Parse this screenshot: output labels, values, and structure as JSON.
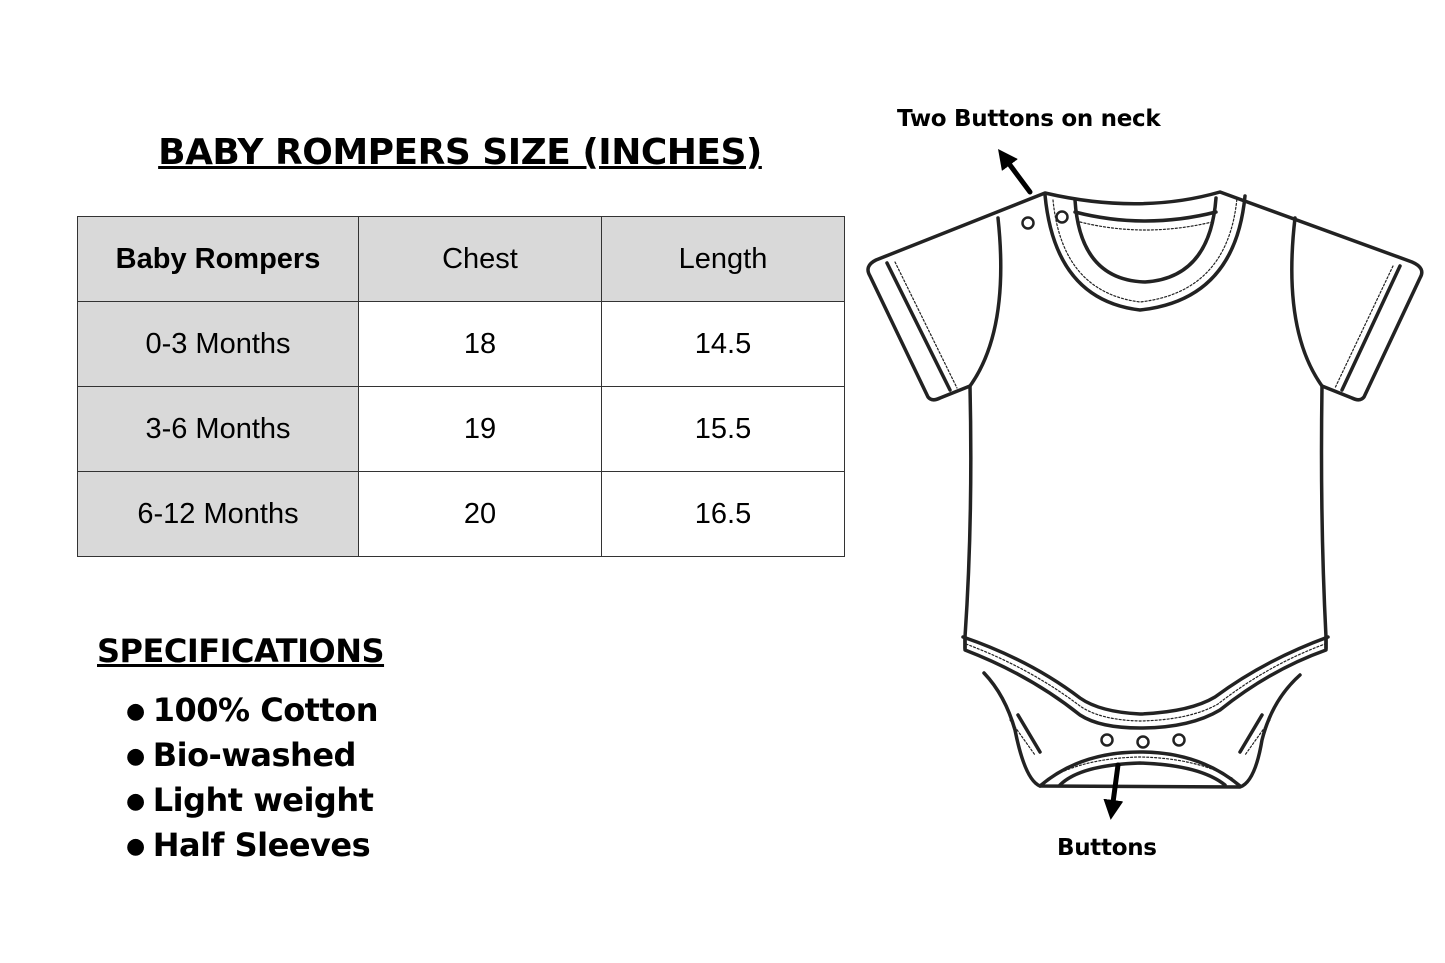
{
  "title": "BABY ROMPERS SIZE (INCHES)",
  "table": {
    "headers": [
      "Baby Rompers",
      "Chest",
      "Length"
    ],
    "rows": [
      [
        "0-3 Months",
        "18",
        "14.5"
      ],
      [
        "3-6 Months",
        "19",
        "15.5"
      ],
      [
        "6-12 Months",
        "20",
        "16.5"
      ]
    ]
  },
  "specifications": {
    "heading": "SPECIFICATIONS",
    "items": [
      "100% Cotton",
      "Bio-washed",
      "Light weight",
      "Half Sleeves"
    ]
  },
  "illustration": {
    "neck_label": "Two Buttons on neck",
    "bottom_label": "Buttons",
    "icon": "baby-romper-outline"
  },
  "colors": {
    "header_fill": "#d9d9d9",
    "line": "#222222"
  }
}
